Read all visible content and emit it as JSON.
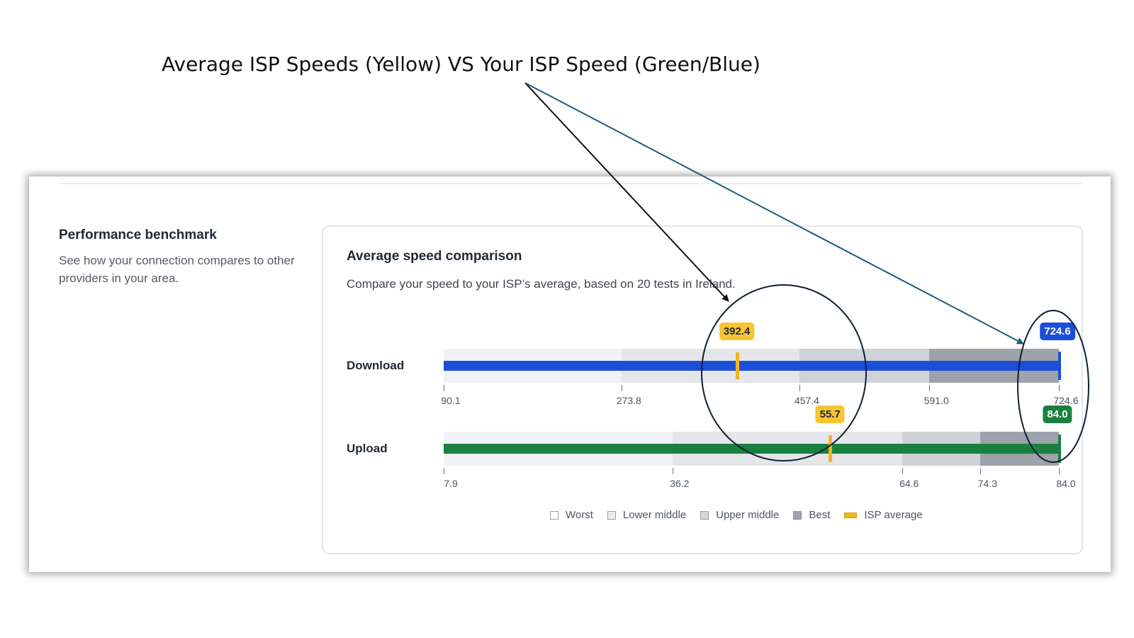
{
  "annotation": {
    "title": "Average ISP Speeds (Yellow) VS Your ISP Speed (Green/Blue)",
    "arrow_colors": [
      "#111111",
      "#1e5b78"
    ],
    "circle_color": "#0f1f33"
  },
  "sidebar": {
    "heading": "Performance benchmark",
    "description": "See how your connection compares to other providers in your area."
  },
  "card": {
    "title": "Average speed comparison",
    "description": "Compare your speed to your ISP’s average, based on 20 tests in Ireland."
  },
  "chart_data": {
    "type": "bar",
    "rows": [
      {
        "label": "Download",
        "scale_min": 90.1,
        "scale_max": 724.6,
        "band_bounds": [
          90.1,
          273.8,
          457.4,
          591.0,
          724.6
        ],
        "ticks": [
          "90.1",
          "273.8",
          "457.4",
          "591.0",
          "724.6"
        ],
        "your_speed": 724.6,
        "your_speed_label": "724.6",
        "isp_average": 392.4,
        "isp_average_label": "392.4",
        "color": "#1d4ed8"
      },
      {
        "label": "Upload",
        "scale_min": 7.9,
        "scale_max": 84.0,
        "band_bounds": [
          7.9,
          36.2,
          64.6,
          74.3,
          84.0
        ],
        "ticks": [
          "7.9",
          "36.2",
          "64.6",
          "74.3",
          "84.0"
        ],
        "your_speed": 84.0,
        "your_speed_label": "84.0",
        "isp_average": 55.7,
        "isp_average_label": "55.7",
        "color": "#1a8040"
      }
    ],
    "legend": [
      "Worst",
      "Lower middle",
      "Upper middle",
      "Best",
      "ISP average"
    ],
    "average_color": "#f2b321"
  }
}
